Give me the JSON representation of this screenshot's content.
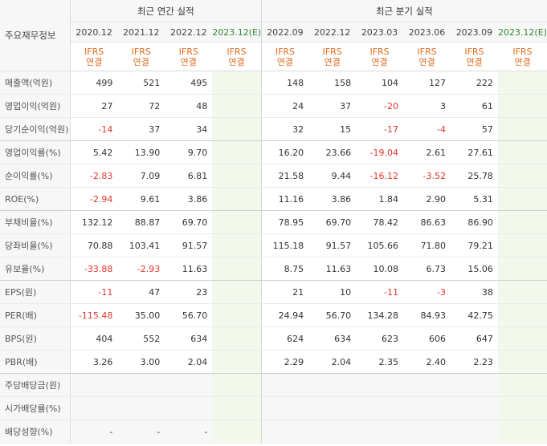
{
  "header": {
    "label": "주요재무정보",
    "annual_title": "최근 연간 실적",
    "quarter_title": "최근 분기 실적",
    "accounting_line1": "IFRS",
    "accounting_line2": "연결"
  },
  "annual_periods": [
    "2020.12",
    "2021.12",
    "2022.12",
    "2023.12(E)"
  ],
  "quarter_periods": [
    "2022.09",
    "2022.12",
    "2023.03",
    "2023.06",
    "2023.09",
    "2023.12(E)"
  ],
  "rows": [
    {
      "label": "매출액(억원)",
      "annual": [
        "499",
        "521",
        "495",
        ""
      ],
      "quarter": [
        "148",
        "158",
        "104",
        "127",
        "222",
        ""
      ]
    },
    {
      "label": "영업이익(억원)",
      "annual": [
        "27",
        "72",
        "48",
        ""
      ],
      "quarter": [
        "24",
        "37",
        "-20",
        "3",
        "61",
        ""
      ]
    },
    {
      "label": "당기순이익(억원)",
      "annual": [
        "-14",
        "37",
        "34",
        ""
      ],
      "quarter": [
        "32",
        "15",
        "-17",
        "-4",
        "57",
        ""
      ]
    },
    {
      "label": "영업이익률(%)",
      "annual": [
        "5.42",
        "13.90",
        "9.70",
        ""
      ],
      "quarter": [
        "16.20",
        "23.66",
        "-19.04",
        "2.61",
        "27.61",
        ""
      ]
    },
    {
      "label": "순이익률(%)",
      "annual": [
        "-2.83",
        "7.09",
        "6.81",
        ""
      ],
      "quarter": [
        "21.58",
        "9.44",
        "-16.12",
        "-3.52",
        "25.78",
        ""
      ]
    },
    {
      "label": "ROE(%)",
      "annual": [
        "-2.94",
        "9.61",
        "3.86",
        ""
      ],
      "quarter": [
        "11.16",
        "3.86",
        "1.84",
        "2.90",
        "5.31",
        ""
      ]
    },
    {
      "label": "부채비율(%)",
      "annual": [
        "132.12",
        "88.87",
        "69.70",
        ""
      ],
      "quarter": [
        "78.95",
        "69.70",
        "78.42",
        "86.63",
        "86.90",
        ""
      ]
    },
    {
      "label": "당좌비율(%)",
      "annual": [
        "70.88",
        "103.41",
        "91.57",
        ""
      ],
      "quarter": [
        "115.18",
        "91.57",
        "105.66",
        "71.80",
        "79.21",
        ""
      ]
    },
    {
      "label": "유보율(%)",
      "annual": [
        "-33.88",
        "-2.93",
        "11.63",
        ""
      ],
      "quarter": [
        "8.75",
        "11.63",
        "10.08",
        "6.73",
        "15.06",
        ""
      ]
    },
    {
      "label": "EPS(원)",
      "annual": [
        "-11",
        "47",
        "23",
        ""
      ],
      "quarter": [
        "21",
        "10",
        "-11",
        "-3",
        "38",
        ""
      ]
    },
    {
      "label": "PER(배)",
      "annual": [
        "-115.48",
        "35.00",
        "56.70",
        ""
      ],
      "quarter": [
        "24.94",
        "56.70",
        "134.28",
        "84.93",
        "42.75",
        ""
      ]
    },
    {
      "label": "BPS(원)",
      "annual": [
        "404",
        "552",
        "634",
        ""
      ],
      "quarter": [
        "624",
        "634",
        "623",
        "606",
        "647",
        ""
      ]
    },
    {
      "label": "PBR(배)",
      "annual": [
        "3.26",
        "3.00",
        "2.04",
        ""
      ],
      "quarter": [
        "2.29",
        "2.04",
        "2.35",
        "2.40",
        "2.23",
        ""
      ]
    },
    {
      "label": "주당배당금(원)",
      "annual": [
        "",
        "",
        "",
        ""
      ],
      "quarter": [
        "",
        "",
        "",
        "",
        "",
        ""
      ]
    },
    {
      "label": "시가배당률(%)",
      "annual": [
        "",
        "",
        "",
        ""
      ],
      "quarter": [
        "",
        "",
        "",
        "",
        "",
        ""
      ]
    },
    {
      "label": "배당성향(%)",
      "annual": [
        "-",
        "-",
        "-",
        ""
      ],
      "quarter": [
        "",
        "",
        "",
        "",
        "",
        ""
      ]
    }
  ],
  "colors": {
    "negative": "#e4352d",
    "ifrs": "#e06c1f",
    "estimate_header": "#2d8a36",
    "estimate_bg": "#f2f8ec"
  }
}
